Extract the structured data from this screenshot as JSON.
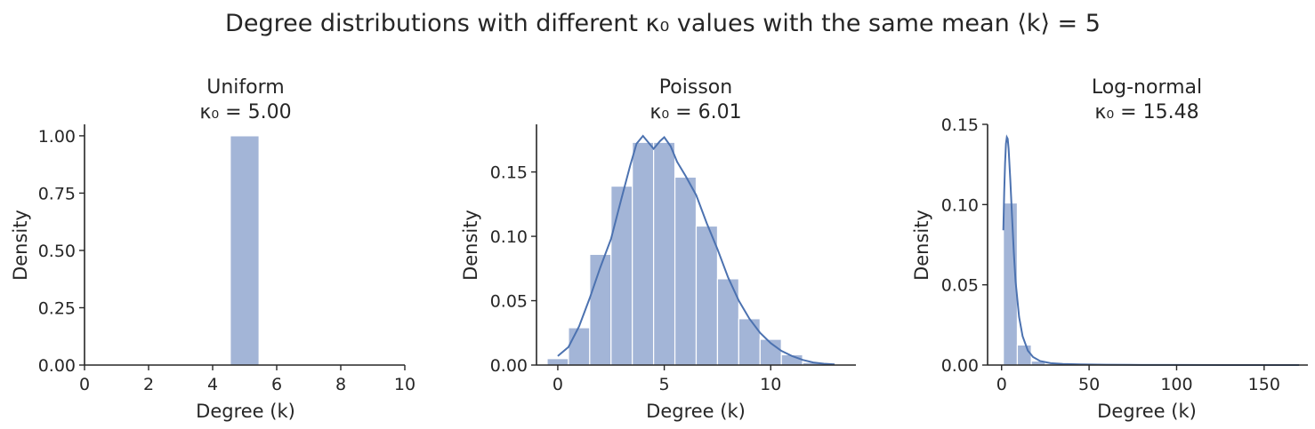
{
  "title": "Degree distributions with different κ₀ values with the same mean ⟨k⟩ = 5",
  "chart_data": [
    {
      "type": "bar",
      "title": "Uniform",
      "subtitle": "κ₀ = 5.00",
      "xlabel": "Degree (k)",
      "ylabel": "Density",
      "xlim": [
        0,
        10
      ],
      "ylim": [
        0,
        1.05
      ],
      "xticks": [
        0,
        2,
        4,
        6,
        8,
        10
      ],
      "yticks": [
        0.0,
        0.25,
        0.5,
        0.75,
        1.0
      ],
      "ytick_labels": [
        "0.00",
        "0.25",
        "0.50",
        "0.75",
        "1.00"
      ],
      "bins": [
        {
          "x0": 4.55,
          "x1": 5.45,
          "density": 1.0
        }
      ],
      "kde": []
    },
    {
      "type": "bar",
      "title": "Poisson",
      "subtitle": "κ₀ = 6.01",
      "xlabel": "Degree (k)",
      "ylabel": "Density",
      "xlim": [
        -1.0,
        14.0
      ],
      "ylim": [
        0,
        0.187
      ],
      "xticks": [
        0,
        5,
        10
      ],
      "yticks": [
        0.0,
        0.05,
        0.1,
        0.15
      ],
      "ytick_labels": [
        "0.00",
        "0.05",
        "0.10",
        "0.15"
      ],
      "bins": [
        {
          "x0": -0.5,
          "x1": 0.5,
          "density": 0.005
        },
        {
          "x0": 0.5,
          "x1": 1.5,
          "density": 0.029
        },
        {
          "x0": 1.5,
          "x1": 2.5,
          "density": 0.086
        },
        {
          "x0": 2.5,
          "x1": 3.5,
          "density": 0.139
        },
        {
          "x0": 3.5,
          "x1": 4.5,
          "density": 0.173
        },
        {
          "x0": 4.5,
          "x1": 5.5,
          "density": 0.173
        },
        {
          "x0": 5.5,
          "x1": 6.5,
          "density": 0.146
        },
        {
          "x0": 6.5,
          "x1": 7.5,
          "density": 0.108
        },
        {
          "x0": 7.5,
          "x1": 8.5,
          "density": 0.067
        },
        {
          "x0": 8.5,
          "x1": 9.5,
          "density": 0.036
        },
        {
          "x0": 9.5,
          "x1": 10.5,
          "density": 0.02
        },
        {
          "x0": 10.5,
          "x1": 11.5,
          "density": 0.008
        },
        {
          "x0": 11.5,
          "x1": 12.5,
          "density": 0.002
        },
        {
          "x0": 12.5,
          "x1": 13.5,
          "density": 0.0005
        }
      ],
      "kde": [
        [
          0,
          0.007
        ],
        [
          0.5,
          0.014
        ],
        [
          1,
          0.03
        ],
        [
          1.5,
          0.052
        ],
        [
          2,
          0.076
        ],
        [
          2.5,
          0.098
        ],
        [
          3,
          0.13
        ],
        [
          3.4,
          0.155
        ],
        [
          3.7,
          0.172
        ],
        [
          4.0,
          0.178
        ],
        [
          4.3,
          0.172
        ],
        [
          4.5,
          0.168
        ],
        [
          4.8,
          0.174
        ],
        [
          5.0,
          0.177
        ],
        [
          5.3,
          0.17
        ],
        [
          5.6,
          0.158
        ],
        [
          6.0,
          0.147
        ],
        [
          6.5,
          0.132
        ],
        [
          7.0,
          0.11
        ],
        [
          7.5,
          0.09
        ],
        [
          8.0,
          0.068
        ],
        [
          8.5,
          0.05
        ],
        [
          9.0,
          0.036
        ],
        [
          9.5,
          0.025
        ],
        [
          10.0,
          0.017
        ],
        [
          10.5,
          0.011
        ],
        [
          11.0,
          0.007
        ],
        [
          11.5,
          0.004
        ],
        [
          12.0,
          0.002
        ],
        [
          12.5,
          0.001
        ],
        [
          13.0,
          0.0005
        ]
      ]
    },
    {
      "type": "bar",
      "title": "Log-normal",
      "subtitle": "κ₀ = 15.48",
      "xlabel": "Degree (k)",
      "ylabel": "Density",
      "xlim": [
        -8,
        175
      ],
      "ylim": [
        0,
        0.15
      ],
      "xticks": [
        0,
        50,
        100,
        150
      ],
      "yticks": [
        0.0,
        0.05,
        0.1,
        0.15
      ],
      "ytick_labels": [
        "0.00",
        "0.05",
        "0.10",
        "0.15"
      ],
      "bins": [
        {
          "x0": 1,
          "x1": 9,
          "density": 0.101
        },
        {
          "x0": 9,
          "x1": 17,
          "density": 0.0125
        },
        {
          "x0": 17,
          "x1": 25,
          "density": 0.0025
        },
        {
          "x0": 25,
          "x1": 33,
          "density": 0.0008
        },
        {
          "x0": 33,
          "x1": 41,
          "density": 0.0004
        },
        {
          "x0": 41,
          "x1": 49,
          "density": 0.0002
        },
        {
          "x0": 49,
          "x1": 57,
          "density": 0.0001
        }
      ],
      "kde": [
        [
          1,
          0.084
        ],
        [
          1.5,
          0.108
        ],
        [
          2,
          0.126
        ],
        [
          2.5,
          0.138
        ],
        [
          3,
          0.142
        ],
        [
          3.5,
          0.141
        ],
        [
          4,
          0.135
        ],
        [
          5,
          0.115
        ],
        [
          6,
          0.092
        ],
        [
          7,
          0.07
        ],
        [
          8,
          0.052
        ],
        [
          10,
          0.03
        ],
        [
          12,
          0.018
        ],
        [
          15,
          0.009
        ],
        [
          18,
          0.005
        ],
        [
          22,
          0.0025
        ],
        [
          28,
          0.0012
        ],
        [
          35,
          0.0007
        ],
        [
          45,
          0.0004
        ],
        [
          60,
          0.0002
        ],
        [
          80,
          0.0001
        ],
        [
          100,
          5e-05
        ],
        [
          130,
          2e-05
        ],
        [
          170,
          0.0
        ]
      ]
    }
  ]
}
